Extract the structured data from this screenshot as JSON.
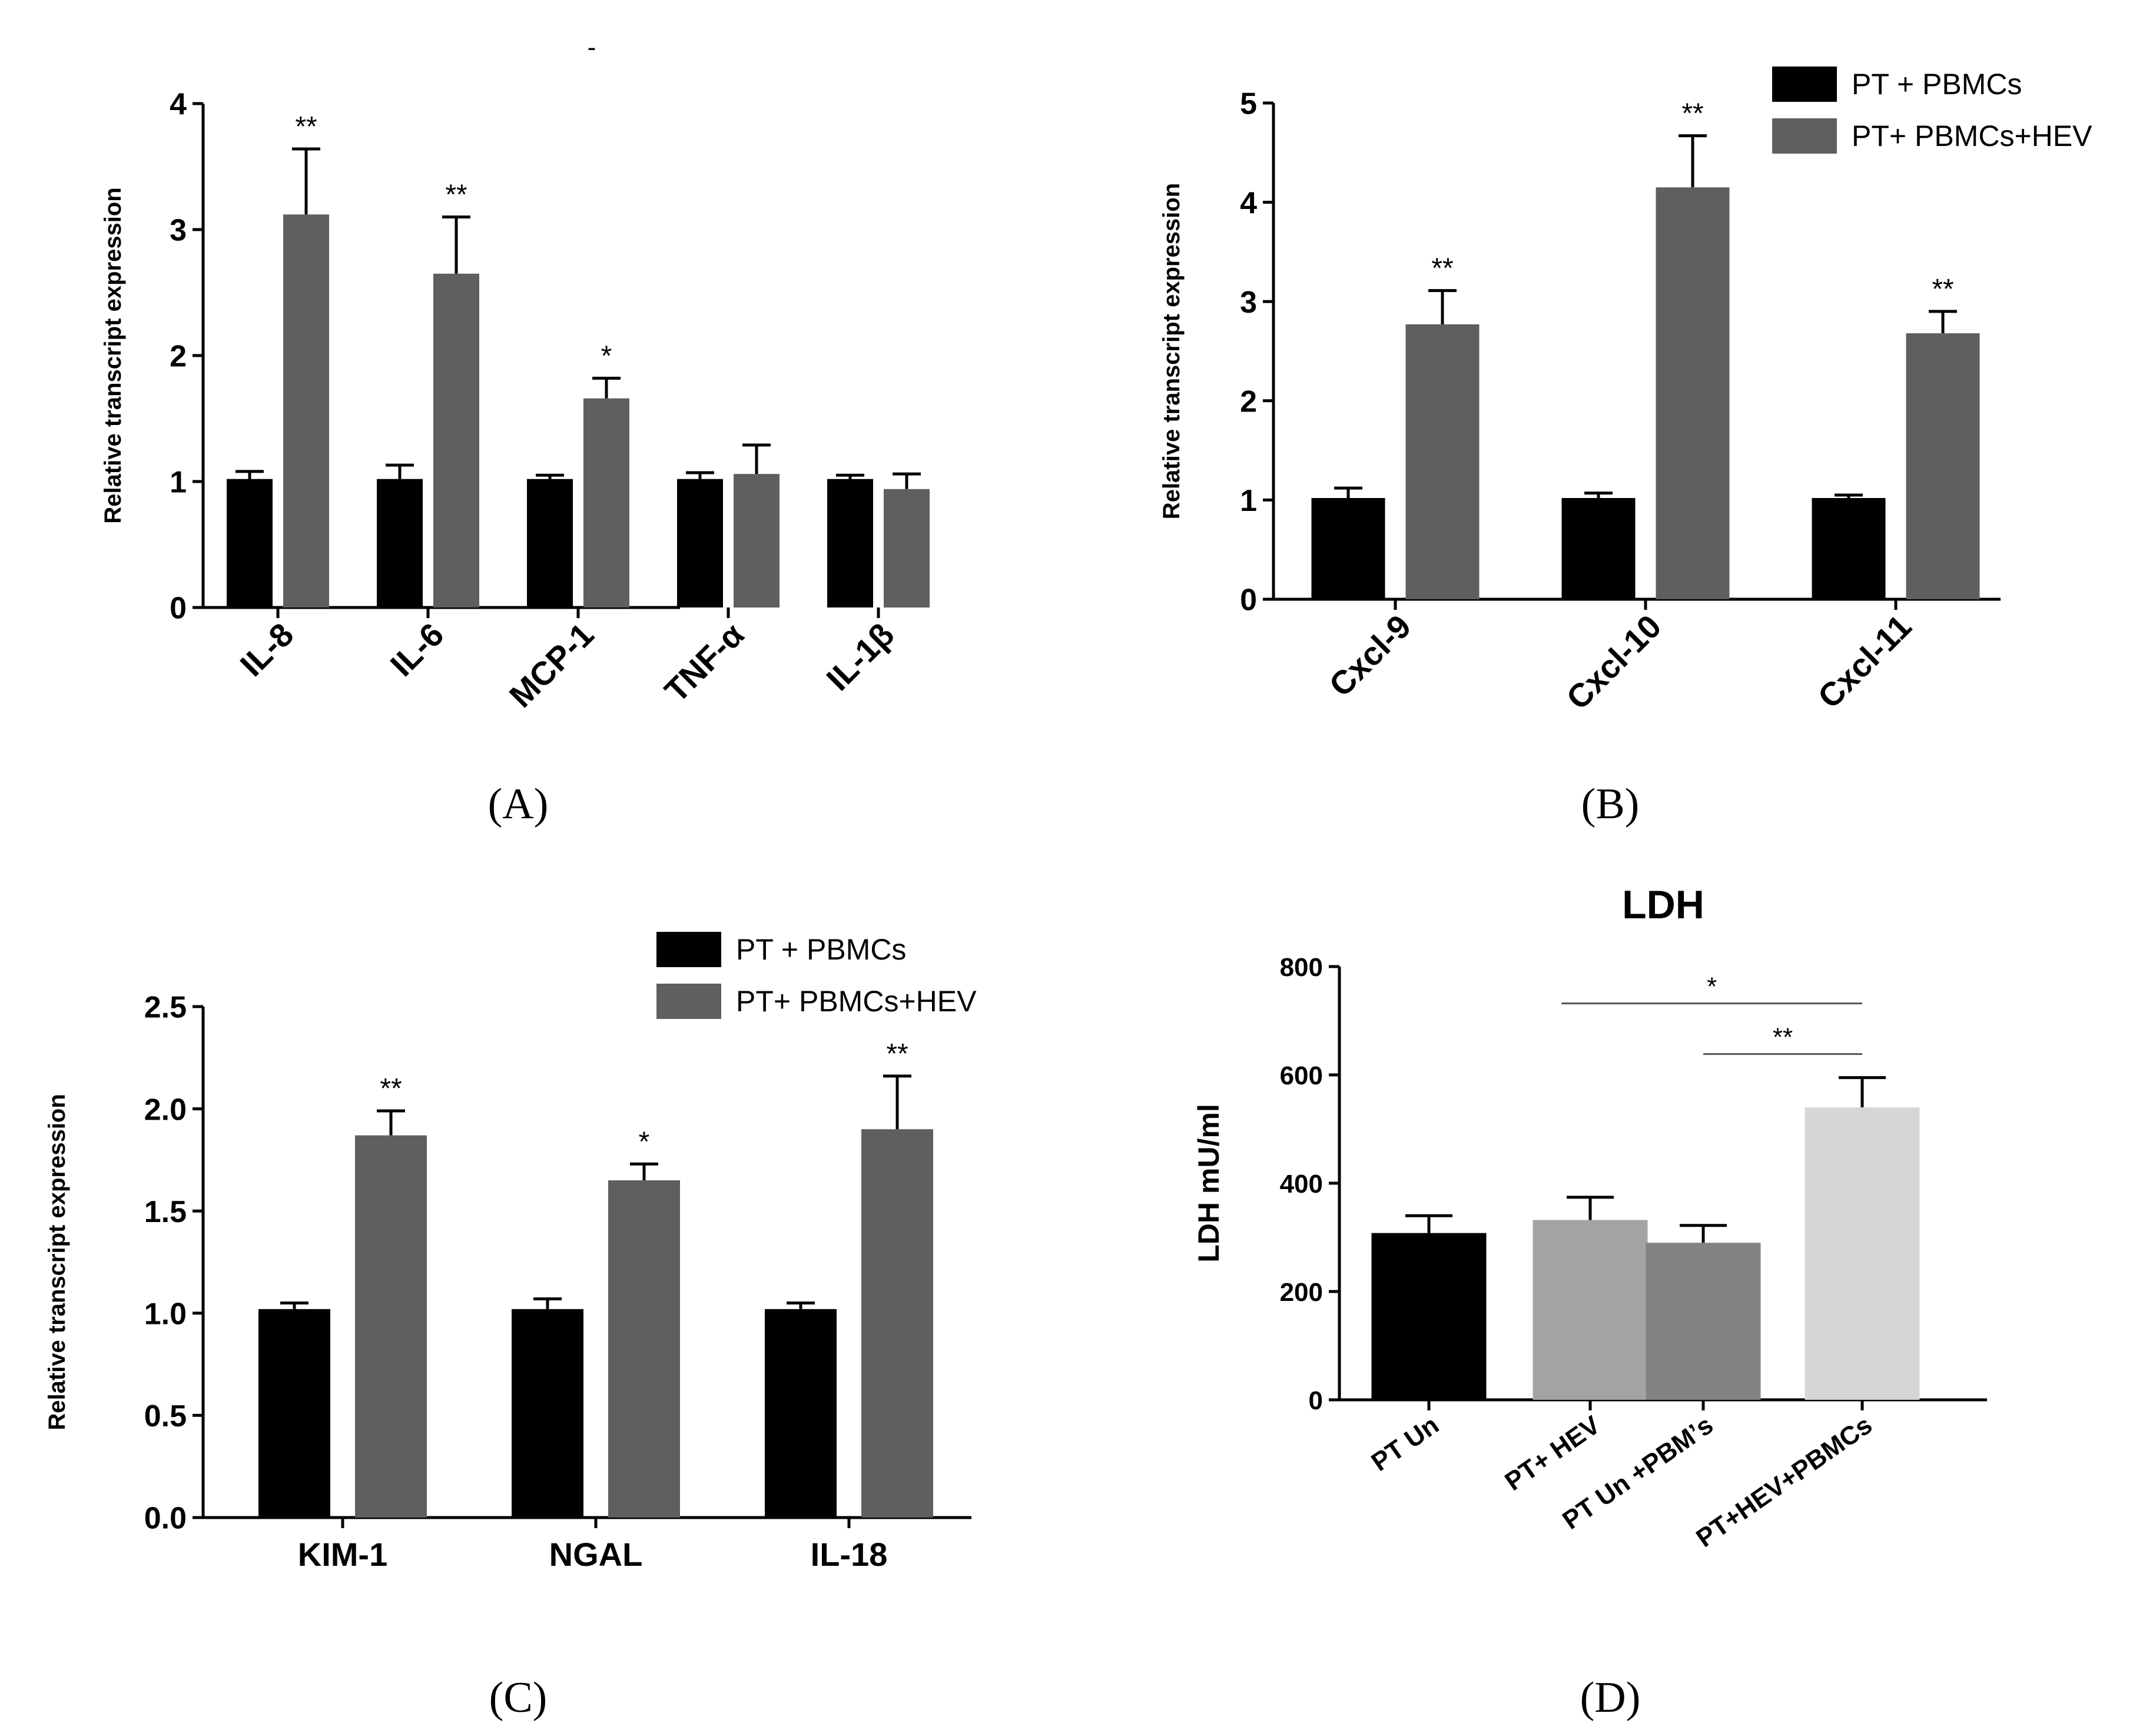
{
  "figure": {
    "panel_labels": [
      {
        "text": "(A)",
        "letter": "A"
      },
      {
        "text": "(B)",
        "letter": "B"
      },
      {
        "text": "(C)",
        "letter": "C"
      },
      {
        "text": "(D)",
        "letter": "D"
      }
    ],
    "top_mark": "-"
  },
  "colors": {
    "black_bar": "#000000",
    "gray_bar": "#5f5f5f",
    "axis": "#000000",
    "d_bars": [
      "#000000",
      "#a3a3a6",
      "#838383",
      "#d6d6d6"
    ]
  },
  "chart_data": [
    {
      "id": "A",
      "type": "bar",
      "title": "",
      "ylabel": "Relative transcript expression",
      "ylim": [
        0,
        4
      ],
      "yticks": [
        "0",
        "1",
        "2",
        "3",
        "4"
      ],
      "categories": [
        "IL-8",
        "IL-6",
        "MCP-1",
        "TNF-α",
        "IL-1β"
      ],
      "series": [
        {
          "name": "PT + PBMCs",
          "color": "#000000",
          "values": [
            1.02,
            1.02,
            1.02,
            1.02,
            1.02
          ],
          "errors": [
            0.06,
            0.11,
            0.03,
            0.05,
            0.03
          ]
        },
        {
          "name": "PT+ PBMCs+HEV",
          "color": "#5f5f5f",
          "values": [
            3.12,
            2.65,
            1.66,
            1.06,
            0.94
          ],
          "errors": [
            0.52,
            0.45,
            0.16,
            0.23,
            0.12
          ]
        }
      ],
      "significance": [
        "**",
        "**",
        "*",
        "",
        ""
      ],
      "legend": false
    },
    {
      "id": "B",
      "type": "bar",
      "title": "",
      "ylabel": "Relative transcript expression",
      "ylim": [
        0,
        5
      ],
      "yticks": [
        "0",
        "1",
        "2",
        "3",
        "4",
        "5"
      ],
      "categories": [
        "Cxcl-9",
        "Cxcl-10",
        "Cxcl-11"
      ],
      "series": [
        {
          "name": "PT + PBMCs",
          "color": "#000000",
          "values": [
            1.02,
            1.02,
            1.02
          ],
          "errors": [
            0.1,
            0.05,
            0.03
          ]
        },
        {
          "name": "PT+ PBMCs+HEV",
          "color": "#5f5f5f",
          "values": [
            2.77,
            4.15,
            2.68
          ],
          "errors": [
            0.34,
            0.52,
            0.22
          ]
        }
      ],
      "significance": [
        "**",
        "**",
        "**"
      ],
      "legend": true,
      "legend_position": "top-right"
    },
    {
      "id": "C",
      "type": "bar",
      "title": "",
      "ylabel": "Relative transcript expression",
      "ylim": [
        0,
        2.5
      ],
      "yticks": [
        "0.0",
        "0.5",
        "1.0",
        "1.5",
        "2.0",
        "2.5"
      ],
      "categories": [
        "KIM-1",
        "NGAL",
        "IL-18"
      ],
      "series": [
        {
          "name": "PT + PBMCs",
          "color": "#000000",
          "values": [
            1.02,
            1.02,
            1.02
          ],
          "errors": [
            0.03,
            0.05,
            0.03
          ]
        },
        {
          "name": "PT+ PBMCs+HEV",
          "color": "#5f5f5f",
          "values": [
            1.87,
            1.65,
            1.9
          ],
          "errors": [
            0.12,
            0.08,
            0.26
          ]
        }
      ],
      "significance": [
        "**",
        "*",
        "**"
      ],
      "legend": true,
      "legend_position": "top-left"
    },
    {
      "id": "D",
      "type": "bar",
      "title": "LDH",
      "ylabel": "LDH mU/ml",
      "ylim": [
        0,
        800
      ],
      "yticks": [
        "0",
        "200",
        "400",
        "600",
        "800"
      ],
      "categories": [
        "PT Un",
        "PT+ HEV",
        "PT Un +PBMʼs",
        "PT+HEV+PBMCs"
      ],
      "values": [
        308,
        332,
        290,
        540
      ],
      "errors": [
        32,
        42,
        32,
        55
      ],
      "colors": [
        "#000000",
        "#a3a3a6",
        "#838383",
        "#d6d6d6"
      ],
      "comparisons": [
        {
          "from": "PT+ HEV",
          "to": "PT+HEV+PBMCs",
          "label": "*"
        },
        {
          "from": "PT Un +PBMʼs",
          "to": "PT+HEV+PBMCs",
          "label": "**"
        }
      ],
      "legend": false
    }
  ]
}
